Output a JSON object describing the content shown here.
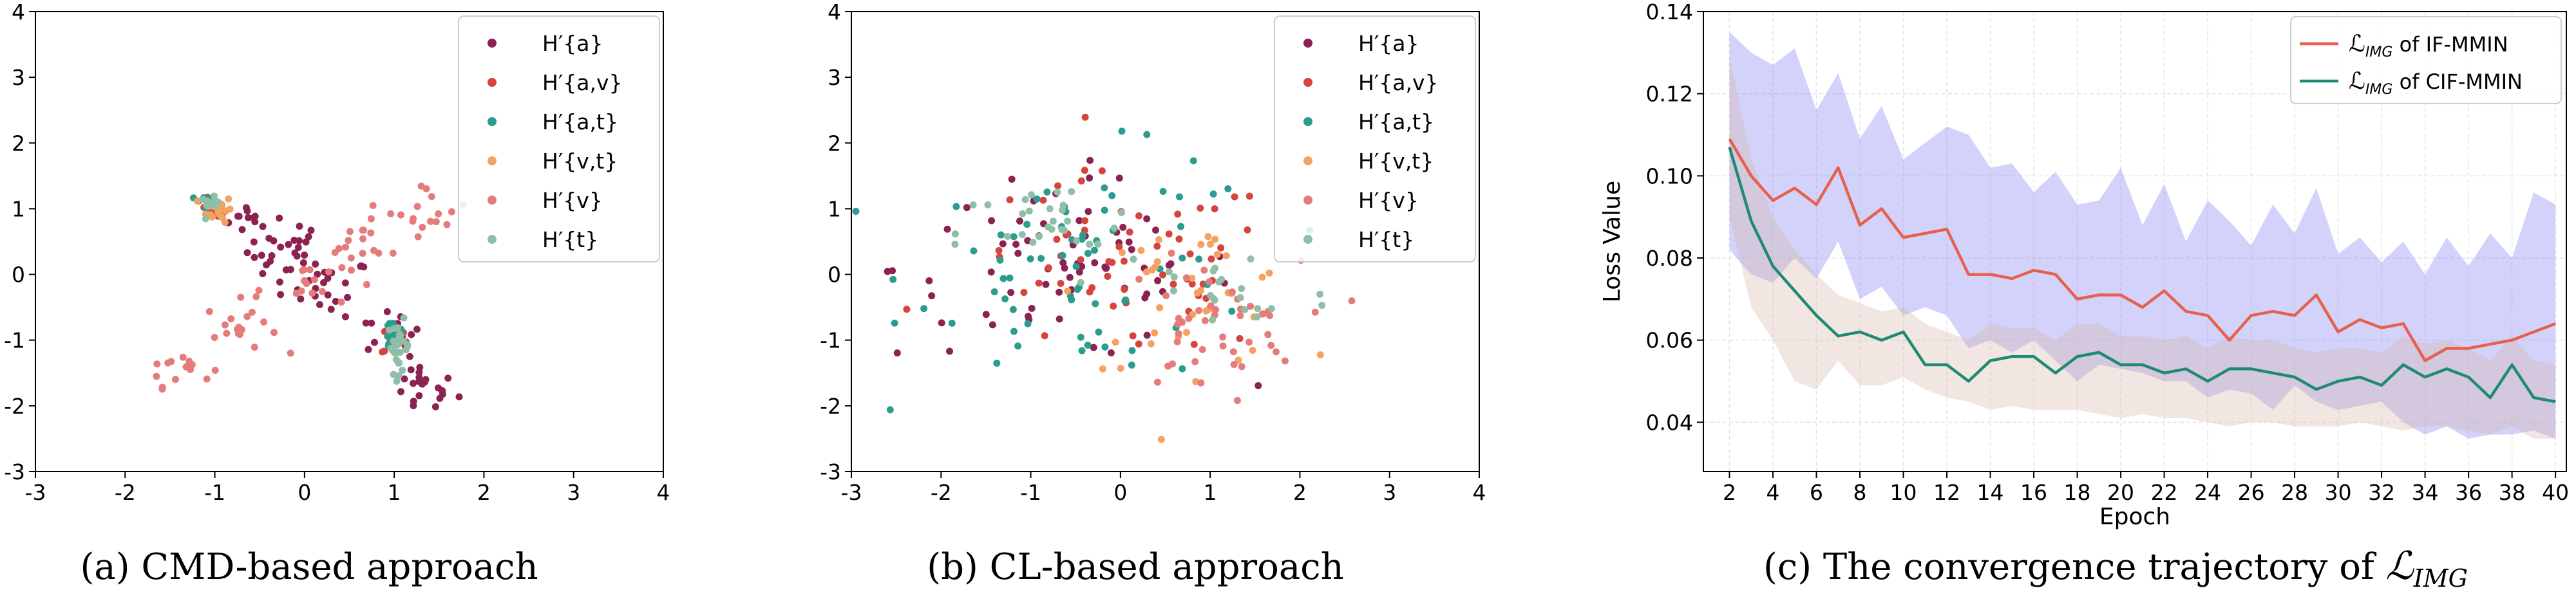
{
  "chart_data": [
    {
      "type": "scatter",
      "caption": "(a) CMD-based approach",
      "xlim": [
        -3,
        4
      ],
      "ylim": [
        -3,
        4
      ],
      "x_ticks": [
        "-3",
        "-2",
        "-1",
        "0",
        "1",
        "2",
        "3",
        "4"
      ],
      "y_ticks": [
        "-3",
        "-2",
        "-1",
        "0",
        "1",
        "2",
        "3",
        "4"
      ],
      "legend_position": "top-right",
      "series": [
        {
          "name": "H′{a}",
          "color": "#8b2252",
          "clusters": [
            {
              "cx": -0.6,
              "cy": 0.85,
              "sx": 0.12,
              "sy": 0.12,
              "n": 10
            },
            {
              "cx": -0.2,
              "cy": 0.35,
              "sx": 0.22,
              "sy": 0.25,
              "n": 30
            },
            {
              "cx": 0.3,
              "cy": -0.2,
              "sx": 0.22,
              "sy": 0.22,
              "n": 20
            },
            {
              "cx": 0.9,
              "cy": -0.9,
              "sx": 0.2,
              "sy": 0.2,
              "n": 12
            },
            {
              "cx": 1.3,
              "cy": -1.75,
              "sx": 0.2,
              "sy": 0.2,
              "n": 22
            }
          ]
        },
        {
          "name": "H′{a,v}",
          "color": "#d6453d",
          "clusters": [
            {
              "cx": -1.0,
              "cy": 1.0,
              "sx": 0.07,
              "sy": 0.08,
              "n": 12
            },
            {
              "cx": 1.0,
              "cy": -1.0,
              "sx": 0.07,
              "sy": 0.12,
              "n": 14
            }
          ]
        },
        {
          "name": "H′{a,t}",
          "color": "#2a9d8f",
          "clusters": [
            {
              "cx": -1.1,
              "cy": 1.1,
              "sx": 0.06,
              "sy": 0.06,
              "n": 18
            },
            {
              "cx": 1.0,
              "cy": -0.9,
              "sx": 0.07,
              "sy": 0.15,
              "n": 18
            }
          ]
        },
        {
          "name": "H′{v,t}",
          "color": "#f4a261",
          "clusters": [
            {
              "cx": -0.95,
              "cy": 1.0,
              "sx": 0.07,
              "sy": 0.1,
              "n": 22
            }
          ]
        },
        {
          "name": "H′{v}",
          "color": "#e57b7b",
          "clusters": [
            {
              "cx": -1.4,
              "cy": -1.4,
              "sx": 0.18,
              "sy": 0.15,
              "n": 14
            },
            {
              "cx": -0.7,
              "cy": -0.8,
              "sx": 0.2,
              "sy": 0.2,
              "n": 18
            },
            {
              "cx": 0.0,
              "cy": -0.1,
              "sx": 0.25,
              "sy": 0.2,
              "n": 16
            },
            {
              "cx": 0.7,
              "cy": 0.5,
              "sx": 0.25,
              "sy": 0.2,
              "n": 16
            },
            {
              "cx": 1.4,
              "cy": 1.0,
              "sx": 0.22,
              "sy": 0.2,
              "n": 16
            }
          ]
        },
        {
          "name": "H′{t}",
          "color": "#8fbfa8",
          "clusters": [
            {
              "cx": -1.05,
              "cy": 1.05,
              "sx": 0.05,
              "sy": 0.06,
              "n": 10
            },
            {
              "cx": 1.05,
              "cy": -1.1,
              "sx": 0.06,
              "sy": 0.2,
              "n": 28
            }
          ]
        }
      ]
    },
    {
      "type": "scatter",
      "caption": "(b) CL-based approach",
      "xlim": [
        -3,
        4
      ],
      "ylim": [
        -3,
        4
      ],
      "x_ticks": [
        "-3",
        "-2",
        "-1",
        "0",
        "1",
        "2",
        "3",
        "4"
      ],
      "y_ticks": [
        "-3",
        "-2",
        "-1",
        "0",
        "1",
        "2",
        "3",
        "4"
      ],
      "legend_position": "top-right",
      "series": [
        {
          "name": "H′{a}",
          "color": "#8b2252",
          "clusters": [
            {
              "cx": -0.6,
              "cy": 0.1,
              "sx": 0.95,
              "sy": 0.7,
              "n": 70
            }
          ]
        },
        {
          "name": "H′{a,v}",
          "color": "#d6453d",
          "clusters": [
            {
              "cx": 0.0,
              "cy": 0.1,
              "sx": 0.9,
              "sy": 0.7,
              "n": 60
            }
          ]
        },
        {
          "name": "H′{a,t}",
          "color": "#2a9d8f",
          "clusters": [
            {
              "cx": -0.3,
              "cy": 0.1,
              "sx": 1.0,
              "sy": 0.85,
              "n": 70
            }
          ]
        },
        {
          "name": "H′{v,t}",
          "color": "#f4a261",
          "clusters": [
            {
              "cx": 0.8,
              "cy": -0.3,
              "sx": 0.6,
              "sy": 0.55,
              "n": 40
            }
          ]
        },
        {
          "name": "H′{v}",
          "color": "#e57b7b",
          "clusters": [
            {
              "cx": 1.0,
              "cy": -0.8,
              "sx": 0.5,
              "sy": 0.5,
              "n": 45
            }
          ]
        },
        {
          "name": "H′{t}",
          "color": "#8fbfa8",
          "clusters": [
            {
              "cx": -0.8,
              "cy": 0.6,
              "sx": 0.5,
              "sy": 0.4,
              "n": 30
            },
            {
              "cx": 1.2,
              "cy": -0.3,
              "sx": 0.6,
              "sy": 0.4,
              "n": 20
            }
          ]
        }
      ]
    },
    {
      "type": "line",
      "caption": "(c) The convergence trajectory of ",
      "caption_math": "IMG",
      "xlabel": "Epoch",
      "ylabel": "Loss Value",
      "xlim": [
        0.8,
        40.5
      ],
      "ylim": [
        0.028,
        0.14
      ],
      "x_ticks": [
        2,
        4,
        6,
        8,
        10,
        12,
        14,
        16,
        18,
        20,
        22,
        24,
        26,
        28,
        30,
        32,
        34,
        36,
        38,
        40
      ],
      "y_ticks": [
        0.04,
        0.06,
        0.08,
        0.1,
        0.12,
        0.14
      ],
      "y_tick_labels": [
        "0.04",
        "0.06",
        "0.08",
        "0.10",
        "0.12",
        "0.14"
      ],
      "grid": true,
      "legend_position": "top-right",
      "x": [
        2,
        3,
        4,
        5,
        6,
        7,
        8,
        9,
        10,
        11,
        12,
        13,
        14,
        15,
        16,
        17,
        18,
        19,
        20,
        21,
        22,
        23,
        24,
        25,
        26,
        27,
        28,
        29,
        30,
        31,
        32,
        33,
        34,
        35,
        36,
        37,
        38,
        39,
        40
      ],
      "series": [
        {
          "name": "IF-MMIN",
          "legend_prefix": "ℒ",
          "legend_sub": "IMG",
          "legend_suffix": " of IF-MMIN",
          "color": "#e8604a",
          "band_color": "#8a8af5",
          "band_opacity": 0.38,
          "values": [
            0.109,
            0.1,
            0.094,
            0.097,
            0.093,
            0.102,
            0.088,
            0.092,
            0.085,
            0.086,
            0.087,
            0.076,
            0.076,
            0.075,
            0.077,
            0.076,
            0.07,
            0.071,
            0.071,
            0.068,
            0.072,
            0.067,
            0.066,
            0.06,
            0.066,
            0.067,
            0.066,
            0.071,
            0.062,
            0.065,
            0.063,
            0.064,
            0.055,
            0.058,
            0.058,
            0.059,
            0.06,
            0.062,
            0.064
          ],
          "upper": [
            0.135,
            0.13,
            0.127,
            0.131,
            0.116,
            0.125,
            0.109,
            0.117,
            0.104,
            0.108,
            0.112,
            0.11,
            0.102,
            0.103,
            0.096,
            0.101,
            0.093,
            0.094,
            0.102,
            0.088,
            0.098,
            0.084,
            0.094,
            0.089,
            0.083,
            0.093,
            0.086,
            0.097,
            0.081,
            0.085,
            0.079,
            0.084,
            0.076,
            0.085,
            0.078,
            0.086,
            0.08,
            0.096,
            0.093
          ],
          "lower": [
            0.082,
            0.076,
            0.074,
            0.08,
            0.075,
            0.084,
            0.07,
            0.073,
            0.066,
            0.068,
            0.066,
            0.058,
            0.06,
            0.057,
            0.06,
            0.055,
            0.05,
            0.054,
            0.053,
            0.052,
            0.05,
            0.05,
            0.046,
            0.048,
            0.047,
            0.043,
            0.049,
            0.045,
            0.043,
            0.044,
            0.045,
            0.04,
            0.037,
            0.039,
            0.036,
            0.037,
            0.037,
            0.038,
            0.036
          ]
        },
        {
          "name": "CIF-MMIN",
          "legend_prefix": "ℒ",
          "legend_sub": "IMG",
          "legend_suffix": " of CIF-MMIN",
          "color": "#1f8a74",
          "band_color": "#d6b8a8",
          "band_opacity": 0.35,
          "values": [
            0.107,
            0.089,
            0.078,
            0.072,
            0.066,
            0.061,
            0.062,
            0.06,
            0.062,
            0.054,
            0.054,
            0.05,
            0.055,
            0.056,
            0.056,
            0.052,
            0.056,
            0.057,
            0.054,
            0.054,
            0.052,
            0.053,
            0.05,
            0.053,
            0.053,
            0.052,
            0.051,
            0.048,
            0.05,
            0.051,
            0.049,
            0.054,
            0.051,
            0.053,
            0.051,
            0.046,
            0.054,
            0.046,
            0.045
          ],
          "upper": [
            0.129,
            0.104,
            0.09,
            0.082,
            0.076,
            0.071,
            0.069,
            0.067,
            0.068,
            0.064,
            0.062,
            0.06,
            0.064,
            0.063,
            0.063,
            0.06,
            0.064,
            0.064,
            0.061,
            0.061,
            0.06,
            0.061,
            0.058,
            0.061,
            0.06,
            0.06,
            0.058,
            0.057,
            0.058,
            0.058,
            0.057,
            0.061,
            0.059,
            0.06,
            0.058,
            0.055,
            0.061,
            0.055,
            0.054
          ],
          "lower": [
            0.09,
            0.068,
            0.06,
            0.05,
            0.048,
            0.055,
            0.049,
            0.049,
            0.051,
            0.048,
            0.046,
            0.045,
            0.043,
            0.044,
            0.043,
            0.043,
            0.043,
            0.042,
            0.041,
            0.042,
            0.041,
            0.041,
            0.04,
            0.039,
            0.04,
            0.04,
            0.039,
            0.039,
            0.039,
            0.04,
            0.039,
            0.038,
            0.039,
            0.039,
            0.038,
            0.037,
            0.039,
            0.036,
            0.036
          ]
        }
      ]
    }
  ]
}
